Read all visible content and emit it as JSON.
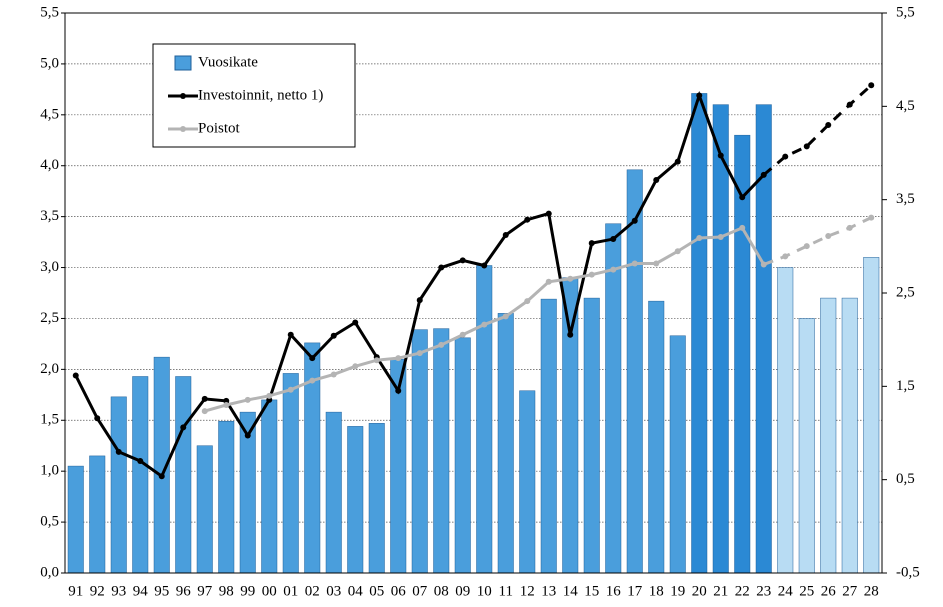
{
  "chart_data": {
    "type": "bar_line",
    "categories": [
      "91",
      "92",
      "93",
      "94",
      "95",
      "96",
      "97",
      "98",
      "99",
      "00",
      "01",
      "02",
      "03",
      "04",
      "05",
      "06",
      "07",
      "08",
      "09",
      "10",
      "11",
      "12",
      "13",
      "14",
      "15",
      "16",
      "17",
      "18",
      "19",
      "20",
      "21",
      "22",
      "23",
      "24",
      "25",
      "26",
      "27",
      "28"
    ],
    "ylim": [
      0,
      5.5
    ],
    "yticks": [
      {
        "value": 0,
        "label": "0,0"
      },
      {
        "value": 0.5,
        "label": "0,5"
      },
      {
        "value": 1,
        "label": "1,0"
      },
      {
        "value": 1.5,
        "label": "1,5"
      },
      {
        "value": 2,
        "label": "2,0"
      },
      {
        "value": 2.5,
        "label": "2,5"
      },
      {
        "value": 3,
        "label": "3,0"
      },
      {
        "value": 3.5,
        "label": "3,5"
      },
      {
        "value": 4,
        "label": "4,0"
      },
      {
        "value": 4.5,
        "label": "4,5"
      },
      {
        "value": 5,
        "label": "5,0"
      },
      {
        "value": 5.5,
        "label": "5,5"
      }
    ],
    "y2lim": [
      -0.5,
      5.5
    ],
    "y2ticks": [
      {
        "value": -0.5,
        "label": "-0,5"
      },
      {
        "value": 0.5,
        "label": "0,5"
      },
      {
        "value": 1.5,
        "label": "1,5"
      },
      {
        "value": 2.5,
        "label": "2,5"
      },
      {
        "value": 3.5,
        "label": "3,5"
      },
      {
        "value": 4.5,
        "label": "4,5"
      },
      {
        "value": 5.5,
        "label": "5,5"
      }
    ],
    "grid": true,
    "legend": "upper left",
    "series": [
      {
        "name": "Vuosikate",
        "kind": "bar",
        "color": "#4a9edc",
        "colors": [
          "#4a9edc",
          "#4a9edc",
          "#4a9edc",
          "#4a9edc",
          "#4a9edc",
          "#4a9edc",
          "#4a9edc",
          "#4a9edc",
          "#4a9edc",
          "#4a9edc",
          "#4a9edc",
          "#4a9edc",
          "#4a9edc",
          "#4a9edc",
          "#4a9edc",
          "#4a9edc",
          "#4a9edc",
          "#4a9edc",
          "#4a9edc",
          "#4a9edc",
          "#4a9edc",
          "#4a9edc",
          "#4a9edc",
          "#4a9edc",
          "#4a9edc",
          "#4a9edc",
          "#4a9edc",
          "#4a9edc",
          "#4a9edc",
          "#2b89d4",
          "#2b89d4",
          "#2b89d4",
          "#2b89d4",
          "#b8dcf3",
          "#b8dcf3",
          "#b8dcf3",
          "#b8dcf3",
          "#b8dcf3"
        ],
        "values": [
          1.05,
          1.15,
          1.73,
          1.93,
          2.12,
          1.93,
          1.25,
          1.49,
          1.58,
          1.7,
          1.96,
          2.26,
          1.58,
          1.44,
          1.47,
          2.1,
          2.39,
          2.4,
          2.31,
          3.02,
          2.55,
          1.79,
          2.69,
          2.9,
          2.7,
          3.43,
          3.96,
          2.67,
          2.33,
          4.71,
          4.6,
          4.3,
          4.6,
          3.0,
          2.5,
          2.7,
          2.7,
          3.1
        ]
      },
      {
        "name": "Investoinnit, netto 1)",
        "kind": "line",
        "color": "#000000",
        "dashed_from": 32,
        "values": [
          1.94,
          1.52,
          1.19,
          1.1,
          0.95,
          1.43,
          1.71,
          1.69,
          1.35,
          1.7,
          2.34,
          2.11,
          2.33,
          2.46,
          2.12,
          1.79,
          2.68,
          3.0,
          3.07,
          3.02,
          3.32,
          3.47,
          3.53,
          2.34,
          3.24,
          3.28,
          3.46,
          3.86,
          4.04,
          4.69,
          4.1,
          3.69,
          3.91,
          4.09,
          4.19,
          4.4,
          4.6,
          4.79
        ]
      },
      {
        "name": "Poistot",
        "kind": "line",
        "color": "#b4b4b4",
        "dashed_from": 32,
        "values": [
          null,
          null,
          null,
          null,
          null,
          null,
          1.59,
          1.65,
          1.7,
          1.74,
          1.8,
          1.89,
          1.95,
          2.03,
          2.09,
          2.11,
          2.16,
          2.24,
          2.34,
          2.44,
          2.52,
          2.67,
          2.86,
          2.89,
          2.93,
          2.98,
          3.04,
          3.04,
          3.16,
          3.29,
          3.3,
          3.39,
          3.03,
          3.11,
          3.21,
          3.31,
          3.39,
          3.49
        ]
      }
    ]
  }
}
